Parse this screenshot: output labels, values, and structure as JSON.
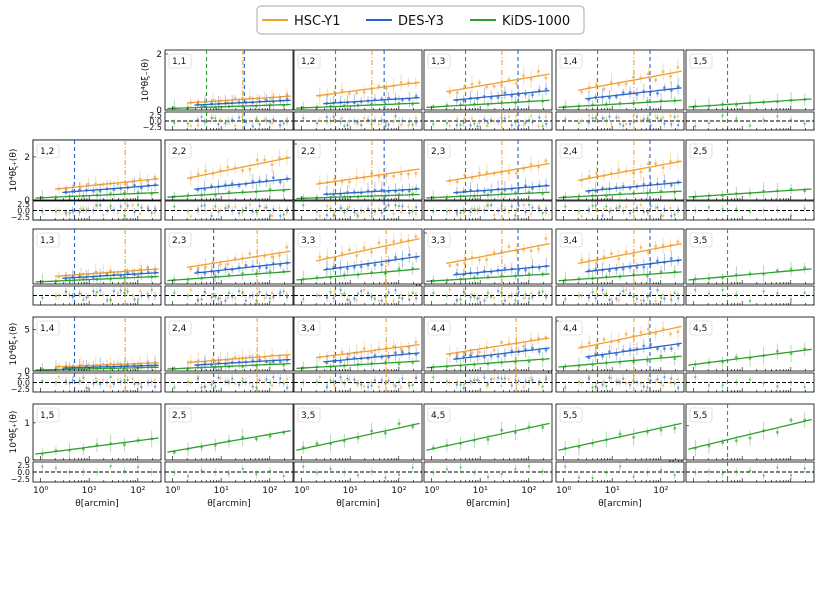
{
  "chart_data": {
    "type": "line",
    "layout": "triangular grid of correlation-function panels with residual sub-panels",
    "legend": {
      "placement": "top-center",
      "entries": [
        {
          "name": "HSC-Y1",
          "color": "#f0a030"
        },
        {
          "name": "DES-Y3",
          "color": "#2a62c8"
        },
        {
          "name": "KiDS-1000",
          "color": "#2ca02c"
        }
      ]
    },
    "xlabel": "θ[arcmin]",
    "xticks": [
      "10⁰",
      "10¹",
      "10²"
    ],
    "xrange": [
      0.7,
      300
    ],
    "ylabel_minus": "10⁴θξ₋(θ)",
    "ylabel_plus": "10⁴θξ₊(θ)",
    "residual_ticks": [
      "2.5",
      "0.0",
      "−2.5"
    ],
    "xi_minus_panels": [
      {
        "label": "1,1",
        "yticks": [
          "0",
          "2"
        ],
        "ymax": 2,
        "surveys": [
          "HSC-Y1",
          "DES-Y3",
          "KiDS-1000"
        ],
        "amp": [
          0.5,
          0.35,
          0.2
        ],
        "cuts": [
          {
            "x": 5,
            "c": "k"
          },
          {
            "x": 28,
            "c": "h"
          },
          {
            "x": 30,
            "c": "d"
          }
        ]
      },
      {
        "label": "1,2",
        "yticks": [],
        "ymax": 2,
        "surveys": [
          "HSC-Y1",
          "DES-Y3",
          "KiDS-1000"
        ],
        "amp": [
          1.0,
          0.45,
          0.25
        ],
        "cuts": [
          {
            "x": 5,
            "c": "k"
          },
          {
            "x": 28,
            "c": "h"
          },
          {
            "x": 50,
            "c": "d"
          }
        ]
      },
      {
        "label": "1,3",
        "yticks": [],
        "ymax": 2,
        "surveys": [
          "HSC-Y1",
          "DES-Y3",
          "KiDS-1000"
        ],
        "amp": [
          1.3,
          0.7,
          0.35
        ],
        "cuts": [
          {
            "x": 5,
            "c": "k"
          },
          {
            "x": 28,
            "c": "h"
          },
          {
            "x": 60,
            "c": "d"
          }
        ]
      },
      {
        "label": "1,4",
        "yticks": [],
        "ymax": 2,
        "surveys": [
          "HSC-Y1",
          "DES-Y3",
          "KiDS-1000"
        ],
        "amp": [
          1.4,
          0.8,
          0.35
        ],
        "cuts": [
          {
            "x": 5,
            "c": "k"
          },
          {
            "x": 28,
            "c": "h"
          },
          {
            "x": 60,
            "c": "d"
          }
        ]
      },
      {
        "label": "1,5",
        "yticks": [],
        "ymax": 2,
        "surveys": [
          "KiDS-1000"
        ],
        "amp": [
          0,
          0,
          0.4
        ],
        "cuts": [
          {
            "x": 5,
            "c": "k"
          }
        ]
      },
      {
        "label": "1,1",
        "yticks": [],
        "ymax": 2,
        "surveys": [
          "HSC-Y1",
          "DES-Y3",
          "KiDS-1000"
        ],
        "amp": [
          0.6,
          0.5,
          0.3
        ],
        "cuts": [
          {
            "x": 7,
            "c": "h"
          },
          {
            "x": 55,
            "c": "h"
          }
        ]
      },
      {
        "label": "2,2",
        "yticks": [
          "0",
          "5"
        ],
        "ymax": 5,
        "surveys": [
          "HSC-Y1",
          "DES-Y3",
          "KiDS-1000"
        ],
        "amp": [
          2.8,
          1.0,
          0.5
        ],
        "cuts": [
          {
            "x": 5,
            "c": "k"
          },
          {
            "x": 28,
            "c": "h"
          },
          {
            "x": 50,
            "c": "d"
          }
        ]
      },
      {
        "label": "2,3",
        "yticks": [],
        "ymax": 5,
        "surveys": [
          "HSC-Y1",
          "DES-Y3",
          "KiDS-1000"
        ],
        "amp": [
          3.3,
          1.3,
          0.7
        ],
        "cuts": [
          {
            "x": 5,
            "c": "k"
          },
          {
            "x": 28,
            "c": "h"
          },
          {
            "x": 60,
            "c": "d"
          }
        ]
      },
      {
        "label": "2,4",
        "yticks": [],
        "ymax": 5,
        "surveys": [
          "HSC-Y1",
          "DES-Y3",
          "KiDS-1000"
        ],
        "amp": [
          3.5,
          1.6,
          0.8
        ],
        "cuts": [
          {
            "x": 5,
            "c": "k"
          },
          {
            "x": 28,
            "c": "h"
          },
          {
            "x": 60,
            "c": "d"
          }
        ]
      },
      {
        "label": "2,5",
        "yticks": [],
        "ymax": 5,
        "surveys": [
          "KiDS-1000"
        ],
        "amp": [
          0,
          0,
          1.0
        ],
        "cuts": [
          {
            "x": 5,
            "c": "k"
          }
        ]
      },
      {
        "label": "3,3",
        "yticks": [
          "0",
          "5"
        ],
        "ymax": 5,
        "surveys": [
          "HSC-Y1",
          "DES-Y3",
          "KiDS-1000"
        ],
        "amp": [
          4.0,
          1.8,
          1.0
        ],
        "cuts": [
          {
            "x": 5,
            "c": "k"
          },
          {
            "x": 28,
            "c": "h"
          },
          {
            "x": 60,
            "c": "d"
          }
        ]
      },
      {
        "label": "3,4",
        "yticks": [],
        "ymax": 5,
        "surveys": [
          "HSC-Y1",
          "DES-Y3",
          "KiDS-1000"
        ],
        "amp": [
          4.0,
          2.4,
          1.2
        ],
        "cuts": [
          {
            "x": 5,
            "c": "k"
          },
          {
            "x": 28,
            "c": "h"
          },
          {
            "x": 60,
            "c": "d"
          }
        ]
      },
      {
        "label": "3,5",
        "yticks": [],
        "ymax": 5,
        "surveys": [
          "KiDS-1000"
        ],
        "amp": [
          0,
          0,
          1.5
        ],
        "cuts": [
          {
            "x": 5,
            "c": "k"
          }
        ]
      },
      {
        "label": "4,4",
        "yticks": [
          "0",
          "5"
        ],
        "ymax": 5,
        "surveys": [
          "HSC-Y1",
          "DES-Y3",
          "KiDS-1000"
        ],
        "amp": [
          4.5,
          2.8,
          1.5
        ],
        "cuts": [
          {
            "x": 5,
            "c": "k"
          },
          {
            "x": 28,
            "c": "h"
          },
          {
            "x": 60,
            "c": "d"
          }
        ]
      },
      {
        "label": "4,5",
        "yticks": [],
        "ymax": 5,
        "surveys": [
          "KiDS-1000"
        ],
        "amp": [
          0,
          0,
          2.2
        ],
        "cuts": [
          {
            "x": 5,
            "c": "k"
          }
        ]
      },
      {
        "label": "5,5",
        "yticks": [
          "0.0",
          "2.5"
        ],
        "ymax": 3.8,
        "surveys": [
          "KiDS-1000"
        ],
        "amp": [
          0,
          0,
          3.0
        ],
        "cuts": [
          {
            "x": 5,
            "c": "k"
          }
        ]
      }
    ],
    "xi_plus_panels": [
      {
        "label": "1,2",
        "yticks": [
          "0",
          "2"
        ],
        "ymax": 2.6,
        "surveys": [
          "HSC-Y1",
          "DES-Y3",
          "KiDS-1000"
        ],
        "amp": [
          1.0,
          0.7,
          0.35
        ],
        "cuts": [
          {
            "x": 5,
            "c": "d"
          },
          {
            "x": 55,
            "c": "h"
          }
        ]
      },
      {
        "label": "2,2",
        "yticks": [],
        "ymax": 2.6,
        "surveys": [
          "HSC-Y1",
          "DES-Y3",
          "KiDS-1000"
        ],
        "amp": [
          2.0,
          1.0,
          0.5
        ],
        "cuts": []
      },
      {
        "label": "1,3",
        "yticks": [],
        "ymax": 2,
        "surveys": [
          "HSC-Y1",
          "DES-Y3",
          "KiDS-1000"
        ],
        "amp": [
          0.6,
          0.45,
          0.3
        ],
        "cuts": [
          {
            "x": 5,
            "c": "d"
          },
          {
            "x": 55,
            "c": "h"
          }
        ]
      },
      {
        "label": "2,3",
        "yticks": [],
        "ymax": 2,
        "surveys": [
          "HSC-Y1",
          "DES-Y3",
          "KiDS-1000"
        ],
        "amp": [
          1.3,
          0.85,
          0.5
        ],
        "cuts": [
          {
            "x": 7,
            "c": "d"
          },
          {
            "x": 55,
            "c": "h"
          }
        ]
      },
      {
        "label": "3,3",
        "yticks": [],
        "ymax": 2,
        "surveys": [
          "HSC-Y1",
          "DES-Y3",
          "KiDS-1000"
        ],
        "amp": [
          1.8,
          1.1,
          0.6
        ],
        "cuts": [
          {
            "x": 5,
            "c": "d"
          },
          {
            "x": 55,
            "c": "h"
          }
        ]
      },
      {
        "label": "1,4",
        "yticks": [
          "0",
          "5"
        ],
        "ymax": 6,
        "surveys": [
          "HSC-Y1",
          "DES-Y3",
          "KiDS-1000"
        ],
        "amp": [
          1.0,
          0.7,
          0.45
        ],
        "cuts": [
          {
            "x": 5,
            "c": "d"
          },
          {
            "x": 55,
            "c": "h"
          }
        ]
      },
      {
        "label": "2,4",
        "yticks": [],
        "ymax": 6,
        "surveys": [
          "HSC-Y1",
          "DES-Y3",
          "KiDS-1000"
        ],
        "amp": [
          2.0,
          1.4,
          0.9
        ],
        "cuts": [
          {
            "x": 7,
            "c": "d"
          },
          {
            "x": 55,
            "c": "h"
          }
        ]
      },
      {
        "label": "3,4",
        "yticks": [],
        "ymax": 6,
        "surveys": [
          "HSC-Y1",
          "DES-Y3",
          "KiDS-1000"
        ],
        "amp": [
          3.2,
          2.2,
          1.2
        ],
        "cuts": [
          {
            "x": 5,
            "c": "d"
          },
          {
            "x": 55,
            "c": "h"
          }
        ]
      },
      {
        "label": "4,4",
        "yticks": [],
        "ymax": 6,
        "surveys": [
          "HSC-Y1",
          "DES-Y3",
          "KiDS-1000"
        ],
        "amp": [
          4.0,
          2.8,
          1.5
        ],
        "cuts": [
          {
            "x": 5,
            "c": "d"
          },
          {
            "x": 55,
            "c": "h"
          }
        ]
      },
      {
        "label": "1,5",
        "yticks": [
          "0",
          "1"
        ],
        "ymax": 1.4,
        "surveys": [
          "KiDS-1000"
        ],
        "amp": [
          0,
          0,
          0.6
        ],
        "cuts": []
      },
      {
        "label": "2,5",
        "yticks": [],
        "ymax": 1.4,
        "surveys": [
          "KiDS-1000"
        ],
        "amp": [
          0,
          0,
          0.8
        ],
        "cuts": []
      },
      {
        "label": "3,5",
        "yticks": [],
        "ymax": 1.4,
        "surveys": [
          "KiDS-1000"
        ],
        "amp": [
          0,
          0,
          1.0
        ],
        "cuts": []
      },
      {
        "label": "4,5",
        "yticks": [],
        "ymax": 1.4,
        "surveys": [
          "KiDS-1000"
        ],
        "amp": [
          0,
          0,
          1.0
        ],
        "cuts": []
      },
      {
        "label": "5,5",
        "yticks": [],
        "ymax": 1.4,
        "surveys": [
          "KiDS-1000"
        ],
        "amp": [
          0,
          0,
          1.0
        ],
        "cuts": []
      }
    ]
  }
}
